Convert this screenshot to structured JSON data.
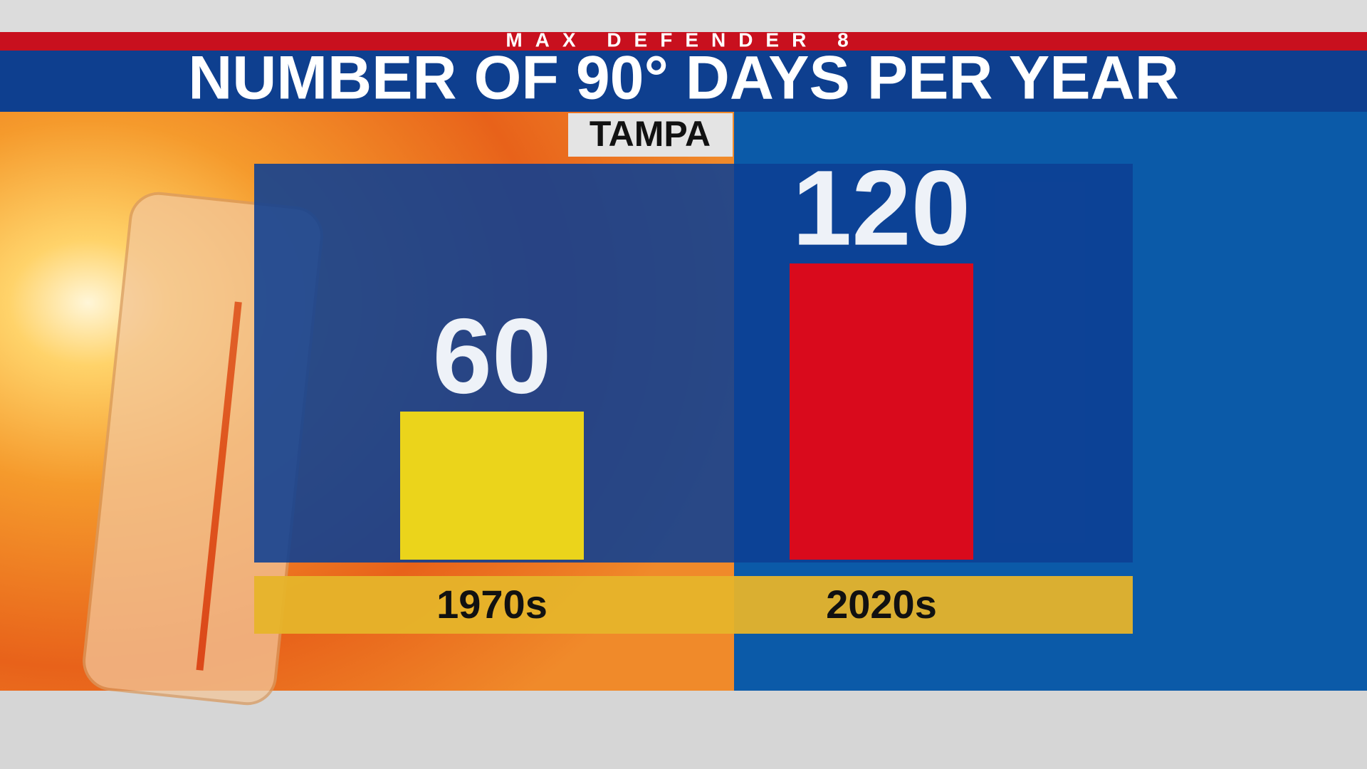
{
  "chart_data": {
    "type": "bar",
    "header": "MAX DEFENDER 8",
    "title": "NUMBER OF 90° DAYS PER YEAR",
    "subtitle": "TAMPA",
    "categories": [
      "1970s",
      "2020s"
    ],
    "values": [
      60,
      120
    ],
    "colors": [
      "#ebd41b",
      "#d90a1c"
    ]
  }
}
